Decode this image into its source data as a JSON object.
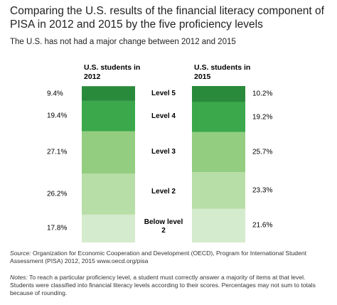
{
  "chart_data": {
    "type": "stackedbar",
    "title": "Comparing the U.S. results of the financial literacy component of PISA in 2012 and 2015 by the five proficiency levels",
    "subtitle": "The U.S. has not had a major change between 2012 and 2015",
    "categories": [
      "U.S. students in 2012",
      "U.S. students in 2015"
    ],
    "series": [
      {
        "name": "Below level 2",
        "color": "#d5ebcd",
        "values": [
          17.8,
          21.6
        ],
        "value_labels": [
          "17.8%",
          "21.6%"
        ]
      },
      {
        "name": "Level 2",
        "color": "#b7dea6",
        "values": [
          26.2,
          23.3
        ],
        "value_labels": [
          "26.2%",
          "23.3%"
        ]
      },
      {
        "name": "Level 3",
        "color": "#93cd80",
        "values": [
          27.1,
          25.7
        ],
        "value_labels": [
          "27.1%",
          "25.7%"
        ]
      },
      {
        "name": "Level 4",
        "color": "#3aa84b",
        "values": [
          19.4,
          19.2
        ],
        "value_labels": [
          "19.4%",
          "19.2%"
        ]
      },
      {
        "name": "Level 5",
        "color": "#2a8a3b",
        "values": [
          9.4,
          10.2
        ],
        "value_labels": [
          "9.4%",
          "10.2%"
        ]
      }
    ],
    "source_label": "Source:",
    "source": "Organization for Economic Cooperation and Development (OECD), Program for International Student Assessment (PISA) 2012, 2015 www.oecd.org/pisa",
    "notes_label": "Notes:",
    "notes": "To reach a particular proficiency level, a student must correctly answer a majority of items at that level. Students were classified into financial literacy levels according to their scores. Percentages may not sum to totals because of rounding."
  }
}
